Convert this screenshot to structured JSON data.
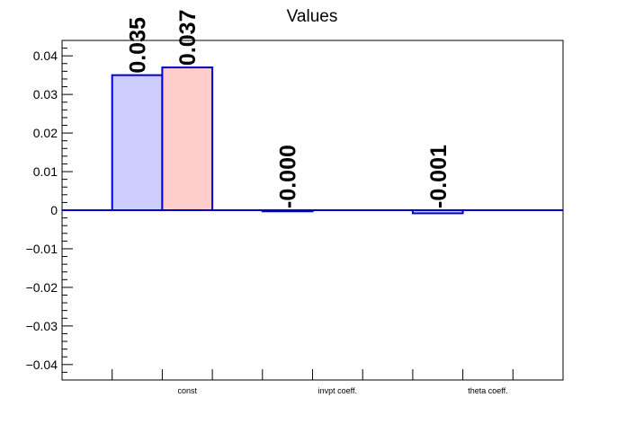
{
  "chart_data": {
    "type": "bar",
    "title": "Values",
    "xlabel": "",
    "ylabel": "",
    "ylim": [
      -0.044,
      0.044
    ],
    "yticks": [
      -0.04,
      -0.03,
      -0.02,
      -0.01,
      0,
      0.01,
      0.02,
      0.03,
      0.04
    ],
    "ytick_labels": [
      "−0.04",
      "−0.03",
      "−0.02",
      "−0.01",
      "0",
      "0.01",
      "0.02",
      "0.03",
      "0.04"
    ],
    "categories": [
      "const",
      "invpt coeff.",
      "theta coeff."
    ],
    "series": [
      {
        "values": [
          0.035,
          -0.0003,
          -0.0008
        ],
        "labels": [
          "0.035",
          "-0.000",
          "-0.001"
        ]
      },
      {
        "values": [
          0.037,
          null,
          null
        ],
        "labels": [
          "0.037",
          "",
          ""
        ]
      }
    ],
    "grid": false,
    "legend": "none",
    "colors": {
      "series_fill": [
        "#ccccff",
        "#ffcccc"
      ],
      "series_stroke": "#0000cc",
      "zero_line": "#0000cc",
      "frame": "#000000"
    }
  }
}
